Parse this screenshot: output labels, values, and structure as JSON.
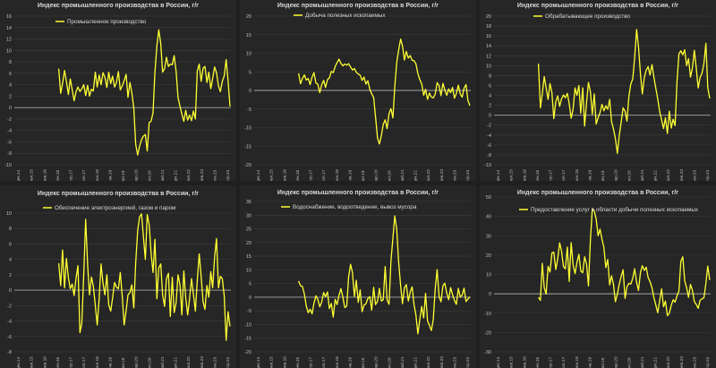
{
  "colors": {
    "background": "#262626",
    "line": "#ffff33",
    "grid": "#3d3d3d",
    "zero": "#a6a6a6",
    "text": "#d9d9d9"
  },
  "chart_data": [
    {
      "type": "line",
      "title": "Индекс промышленного производства в России, г/г",
      "series": [
        {
          "name": "Промышленное производство",
          "values": [
            6.8,
            2.5,
            4.2,
            6.5,
            4.6,
            2.3,
            5.0,
            3.1,
            1.2,
            2.8,
            3.6,
            2.8,
            3.3,
            4.0,
            2.1,
            3.9,
            2.0,
            3.2,
            2.9,
            6.2,
            3.6,
            5.7,
            4.0,
            6.1,
            5.3,
            3.5,
            6.2,
            4.2,
            5.5,
            3.6,
            4.4,
            6.3,
            3.1,
            3.8,
            4.7,
            5.8,
            1.8,
            4.4,
            2.6,
            -0.1,
            -6.4,
            -8.3,
            -6.8,
            -5.6,
            -5.0,
            -4.7,
            -7.6,
            -2.6,
            -2.4,
            -0.9,
            6.2,
            10.8,
            13.6,
            11.2,
            6.2,
            6.8,
            8.8,
            7.2,
            7.6,
            7.5,
            9.1,
            6.3,
            1.8,
            0.2,
            -1.1,
            -2.4,
            -0.5,
            -2.2,
            -1.3,
            -2.3,
            -0.6,
            -2.0,
            6.4,
            7.6,
            4.6,
            6.9,
            7.2,
            4.4,
            6.2,
            3.3,
            5.1,
            7.1,
            6.1,
            3.8,
            2.8,
            4.6,
            5.5,
            8.4,
            4.7,
            0.2
          ]
        }
      ],
      "y_ticks": [
        "16",
        "14",
        "12",
        "10",
        "8",
        "6",
        "4",
        "2",
        "0",
        "-2",
        "-4",
        "-6",
        "-8",
        "-10"
      ],
      "ylim": [
        -10,
        16
      ],
      "x_ticks": [
        "дек.14",
        "июл.15",
        "фев.16",
        "сен.16",
        "апр.17",
        "ноя.17",
        "июн.18",
        "янв.19",
        "авг.19",
        "мар.20",
        "окт.20",
        "май.21",
        "дек.21",
        "июл.22",
        "фев.23",
        "сен.23",
        "апр.24"
      ]
    },
    {
      "type": "line",
      "title": "Индекс промышленного производства в России, г/г",
      "series": [
        {
          "name": "Добыча полезных ископаемых",
          "values": [
            4.6,
            1.8,
            3.2,
            4.2,
            2.8,
            3.2,
            1.6,
            3.6,
            4.8,
            2.0,
            1.7,
            -0.6,
            1.5,
            2.7,
            0.8,
            2.9,
            3.4,
            5.1,
            4.8,
            6.4,
            7.5,
            8.4,
            7.3,
            6.6,
            7.1,
            6.8,
            7.2,
            6.3,
            5.5,
            5.9,
            4.9,
            4.4,
            4.1,
            2.7,
            3.6,
            1.7,
            2.6,
            0.3,
            -0.9,
            -1.9,
            -7.1,
            -12.8,
            -14.4,
            -12.2,
            -9.1,
            -7.9,
            -10.3,
            -6.2,
            -4.9,
            -7.4,
            1.0,
            7.6,
            10.8,
            13.8,
            12.0,
            8.2,
            10.5,
            8.7,
            9.4,
            8.1,
            8.0,
            7.1,
            4.5,
            2.9,
            1.7,
            -1.3,
            0.3,
            -2.4,
            -0.7,
            -1.8,
            -2.0,
            -1.0,
            2.1,
            1.3,
            -1.4,
            1.9,
            0.1,
            -1.3,
            0.4,
            -0.6,
            0.8,
            -2.1,
            -0.8,
            1.4,
            -0.9,
            -1.8,
            0.6,
            1.6,
            -2.7,
            -4.1
          ]
        }
      ],
      "y_ticks": [
        "20",
        "15",
        "10",
        "5",
        "0",
        "-5",
        "-10",
        "-15",
        "-20"
      ],
      "ylim": [
        -20,
        20
      ],
      "x_ticks": [
        "дек.14",
        "июл.15",
        "фев.16",
        "сен.16",
        "апр.17",
        "ноя.17",
        "июн.18",
        "янв.19",
        "авг.19",
        "мар.20",
        "окт.20",
        "май.21",
        "дек.21",
        "июл.22",
        "фев.23",
        "сен.23",
        "апр.24"
      ]
    },
    {
      "type": "line",
      "title": "Индекс промышленного производства в России, г/г",
      "series": [
        {
          "name": "Обрабатывающее производство",
          "values": [
            10.4,
            1.5,
            4.3,
            7.8,
            5.5,
            3.2,
            6.4,
            4.5,
            -0.7,
            2.8,
            3.9,
            1.8,
            3.3,
            4.1,
            3.5,
            4.4,
            2.3,
            -0.6,
            1.2,
            5.5,
            4.0,
            6.0,
            0.4,
            5.5,
            -2.2,
            2.6,
            6.6,
            4.7,
            0.2,
            4.3,
            -1.8,
            -0.5,
            0.5,
            2.2,
            0.9,
            1.9,
            1.2,
            3.2,
            -1.3,
            -2.8,
            -4.7,
            -7.7,
            -4.1,
            -1.3,
            1.5,
            0.8,
            -1.2,
            3.8,
            6.3,
            7.3,
            11.6,
            17.3,
            13.8,
            8.3,
            4.3,
            7.6,
            9.1,
            9.8,
            8.1,
            10.2,
            7.7,
            5.4,
            3.3,
            0.7,
            -0.9,
            -2.7,
            -0.5,
            -3.7,
            0.8,
            -2.6,
            -0.8,
            -2.1,
            6.7,
            12.4,
            13.0,
            12.2,
            13.2,
            10.0,
            11.4,
            7.7,
            9.5,
            13.1,
            9.6,
            5.5,
            7.6,
            8.5,
            10.4,
            14.5,
            5.6,
            3.4
          ]
        }
      ],
      "y_ticks": [
        "20",
        "18",
        "16",
        "14",
        "12",
        "10",
        "8",
        "6",
        "4",
        "2",
        "0",
        "-2",
        "-4",
        "-6",
        "-8",
        "-10"
      ],
      "ylim": [
        -10,
        20
      ],
      "x_ticks": [
        "дек.14",
        "июл.15",
        "фев.16",
        "сен.16",
        "апр.17",
        "ноя.17",
        "июн.18",
        "янв.19",
        "авг.19",
        "мар.20",
        "окт.20",
        "май.21",
        "дек.21",
        "июл.22",
        "фев.23",
        "сен.23",
        "апр.24"
      ]
    },
    {
      "type": "line",
      "title": "Индекс промышленного производства в России, г/г",
      "series": [
        {
          "name": "Обеспечение электроэнергией, газом и паром",
          "values": [
            3.5,
            0.6,
            5.2,
            0.3,
            4.1,
            1.6,
            0.2,
            0.8,
            -0.7,
            1.6,
            3.2,
            -5.5,
            -4.3,
            2.1,
            9.2,
            3.3,
            -0.6,
            1.7,
            0.5,
            -2.0,
            -4.5,
            -1.1,
            3.4,
            0.9,
            -0.6,
            2.0,
            -1.9,
            -2.7,
            -1.0,
            1.0,
            0.4,
            0.2,
            2.3,
            -0.8,
            -4.5,
            -2.7,
            -0.6,
            -0.3,
            0.7,
            -2.3,
            3.5,
            7.7,
            9.5,
            9.9,
            7.0,
            4.0,
            9.8,
            8.5,
            4.8,
            2.3,
            6.6,
            -1.1,
            2.9,
            3.4,
            -0.6,
            -2.1,
            1.5,
            2.2,
            -3.4,
            1.7,
            -2.9,
            -1.6,
            2.0,
            0.7,
            -3.2,
            2.5,
            -1.0,
            -3.2,
            -1.1,
            1.5,
            -0.5,
            -2.7,
            1.2,
            4.7,
            1.8,
            -1.5,
            -2.5,
            0.6,
            -0.9,
            2.4,
            0.3,
            4.3,
            6.7,
            0.3,
            1.8,
            1.5,
            -0.7,
            -6.5,
            -2.8,
            -4.7
          ]
        }
      ],
      "y_ticks": [
        "10",
        "8",
        "6",
        "4",
        "2",
        "0",
        "-2",
        "-4",
        "-6",
        "-8"
      ],
      "ylim": [
        -8,
        10
      ],
      "x_ticks": [
        "дек.14",
        "июл.15",
        "фев.16",
        "сен.16",
        "апр.17",
        "ноя.17",
        "июн.18",
        "янв.19",
        "авг.19",
        "мар.20",
        "окт.20",
        "май.21",
        "дек.21",
        "июл.22",
        "фев.23",
        "сен.23",
        "апр.24"
      ]
    },
    {
      "type": "line",
      "title": "Индекс промышленного производства в России, г/г",
      "series": [
        {
          "name": "Водоснабжение, водоотведение, вывоз мусора",
          "values": [
            5.9,
            4.2,
            3.9,
            1.1,
            -3.2,
            -5.7,
            -4.4,
            -6.1,
            -2.2,
            0.5,
            -0.8,
            -3.5,
            -1.8,
            1.7,
            0.2,
            1.9,
            -4.2,
            -2.3,
            -7.3,
            -0.8,
            -2.7,
            0.7,
            3.1,
            0.0,
            -3.8,
            -3.3,
            7.4,
            12.0,
            9.0,
            0.3,
            6.2,
            -1.9,
            2.7,
            -5.3,
            -2.9,
            -2.4,
            -0.5,
            0.2,
            -4.7,
            3.6,
            -2.7,
            -1.5,
            3.2,
            -1.4,
            -0.9,
            11.2,
            -1.0,
            -2.6,
            13.2,
            21.6,
            29.7,
            24.8,
            12.9,
            4.3,
            -2.4,
            3.5,
            4.6,
            -1.4,
            1.9,
            3.8,
            -2.7,
            -6.7,
            -13.4,
            -8.1,
            -3.4,
            -7.6,
            1.4,
            -8.6,
            -10.3,
            -12.2,
            -8.1,
            3.1,
            10.1,
            0.3,
            -1.7,
            4.2,
            5.1,
            1.4,
            -0.9,
            3.5,
            1.0,
            -1.2,
            -2.6,
            3.2,
            0.1,
            0.8,
            3.3,
            -1.6,
            -0.7,
            0.1
          ]
        }
      ],
      "y_ticks": [
        "35",
        "30",
        "25",
        "20",
        "15",
        "10",
        "5",
        "0",
        "-5",
        "-10",
        "-15",
        "-20"
      ],
      "ylim": [
        -20,
        35
      ],
      "x_ticks": [
        "дек.14",
        "июл.15",
        "фев.16",
        "сен.16",
        "апр.17",
        "ноя.17",
        "июн.18",
        "янв.19",
        "авг.19",
        "мар.20",
        "окт.20",
        "май.21",
        "дек.21",
        "июл.22",
        "фев.23",
        "сен.23",
        "апр.24"
      ]
    },
    {
      "type": "line",
      "title": "Индекс промышленного производства в России, г/г",
      "series": [
        {
          "name": "Предоставление услуг в области добычи полезных ископаемых",
          "values": [
            -1.8,
            -3.4,
            15.7,
            3.1,
            -0.1,
            14.2,
            11.2,
            21.1,
            21.5,
            12.5,
            18.0,
            26.3,
            22.0,
            14.0,
            12.9,
            24.1,
            6.4,
            26.4,
            15.1,
            10.4,
            16.1,
            20.4,
            11.8,
            10.9,
            19.1,
            15.3,
            4.1,
            28.1,
            43.8,
            42.8,
            38.6,
            30.0,
            33.4,
            28.2,
            24.1,
            13.5,
            17.7,
            4.6,
            9.3,
            4.7,
            -4.1,
            -0.2,
            5.0,
            9.1,
            12.4,
            -2.4,
            3.6,
            5.4,
            5.0,
            8.0,
            12.9,
            6.0,
            1.7,
            11.0,
            14.5,
            12.1,
            13.8,
            8.3,
            6.3,
            3.1,
            -2.0,
            -5.8,
            -9.8,
            -3.4,
            2.5,
            -6.7,
            -3.8,
            -11.3,
            -10.0,
            -6.0,
            -3.1,
            -4.3,
            -1.1,
            1.5,
            16.7,
            19.1,
            6.8,
            3.1,
            -1.8,
            4.8,
            1.9,
            -4.0,
            -5.5,
            -7.5,
            -3.4,
            -2.6,
            -2.0,
            5.3,
            14.3,
            7.1
          ]
        }
      ],
      "y_ticks": [
        "50",
        "40",
        "30",
        "20",
        "10",
        "0",
        "-10",
        "-20",
        "-30"
      ],
      "ylim": [
        -30,
        50
      ],
      "x_ticks": [
        "дек.14",
        "июл.15",
        "фев.16",
        "сен.16",
        "апр.17",
        "ноя.17",
        "июн.18",
        "янв.19",
        "авг.19",
        "мар.20",
        "окт.20",
        "май.21",
        "дек.21",
        "июл.22",
        "фев.23",
        "сен.23",
        "апр.24"
      ]
    }
  ]
}
